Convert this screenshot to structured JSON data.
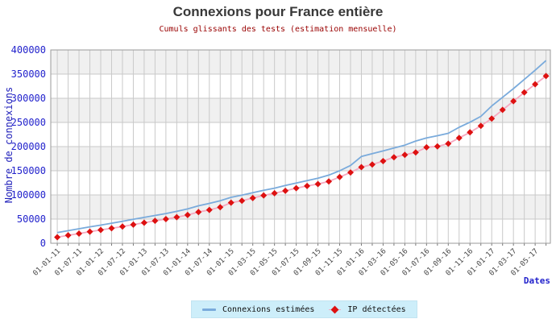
{
  "header": {
    "title": "Connexions pour France entière",
    "subtitle": "Cumuls glissants des tests (estimation mensuelle)"
  },
  "axes": {
    "y_label": "Nombre de connexions",
    "x_label": "Dates",
    "y_tick_labels": [
      "0",
      "50000",
      "100000",
      "150000",
      "200000",
      "250000",
      "300000",
      "350000",
      "400000"
    ]
  },
  "legend": {
    "background": "#cdeefa",
    "items": [
      {
        "label": "Connexions estimées",
        "swatch": "line-swatch",
        "color": "#7aabdc"
      },
      {
        "label": "IP détectées",
        "swatch": "diamond-swatch",
        "color": "#dd1111"
      }
    ]
  },
  "chart_data": {
    "type": "line",
    "title": "Connexions pour France entière",
    "subtitle": "Cumuls glissants des tests (estimation mensuelle)",
    "xlabel": "Dates",
    "ylabel": "Nombre de connexions",
    "ylim": [
      0,
      400000
    ],
    "y_tick_step": 50000,
    "grid": true,
    "legend_position": "bottom",
    "x": [
      "01-01-11",
      "01-04-11",
      "01-07-11",
      "01-10-11",
      "01-01-12",
      "01-04-12",
      "01-07-12",
      "01-10-12",
      "01-01-13",
      "01-04-13",
      "01-07-13",
      "01-10-13",
      "01-01-14",
      "01-04-14",
      "01-07-14",
      "01-10-14",
      "01-01-15",
      "01-02-15",
      "01-03-15",
      "01-04-15",
      "01-05-15",
      "01-06-15",
      "01-07-15",
      "01-08-15",
      "01-09-15",
      "01-10-15",
      "01-11-15",
      "01-12-15",
      "01-01-16",
      "01-02-16",
      "01-03-16",
      "01-04-16",
      "01-05-16",
      "01-06-16",
      "01-07-16",
      "01-08-16",
      "01-09-16",
      "01-10-16",
      "01-11-16",
      "01-12-16",
      "01-01-17",
      "01-02-17",
      "01-03-17",
      "01-04-17",
      "01-05-17",
      "01-06-17"
    ],
    "x_tick_every": 2,
    "x_tick_labels": [
      "01-01-11",
      "01-07-11",
      "01-01-12",
      "01-07-12",
      "01-01-13",
      "01-07-13",
      "01-01-14",
      "01-07-14",
      "01-01-15",
      "01-03-15",
      "01-05-15",
      "01-07-15",
      "01-09-15",
      "01-11-15",
      "01-01-16",
      "01-03-16",
      "01-05-16",
      "01-07-16",
      "01-09-16",
      "01-11-16",
      "01-01-17",
      "01-03-17",
      "01-05-17"
    ],
    "series": [
      {
        "name": "Connexions estimées",
        "color": "#7aabdc",
        "marker": "none",
        "values": [
          22000,
          26000,
          30000,
          34000,
          37500,
          41500,
          45500,
          49500,
          53500,
          57500,
          61500,
          66000,
          71000,
          77500,
          82500,
          88000,
          95000,
          99500,
          104500,
          109500,
          114000,
          119500,
          124500,
          129500,
          134500,
          141000,
          150000,
          161000,
          179500,
          185500,
          191000,
          197000,
          203000,
          211500,
          218000,
          222500,
          227500,
          240000,
          250500,
          262500,
          284000,
          302000,
          320000,
          339000,
          358000,
          378000
        ]
      },
      {
        "name": "IP détectées",
        "color": "#f6a9c0",
        "marker": "diamond",
        "marker_color": "#dd1111",
        "values": [
          12500,
          16500,
          20000,
          24000,
          27500,
          31000,
          34500,
          38500,
          42500,
          46500,
          50000,
          54000,
          58500,
          64500,
          69000,
          74500,
          84000,
          88000,
          93500,
          99000,
          103500,
          108500,
          114000,
          118500,
          122500,
          128000,
          137000,
          146500,
          157500,
          163000,
          170000,
          178000,
          183000,
          188000,
          198500,
          200500,
          206000,
          218000,
          229500,
          243000,
          258000,
          276000,
          294000,
          312000,
          329000,
          346000
        ]
      }
    ],
    "style": {
      "band_dark": "#f0f0f0",
      "band_light": "#ffffff",
      "grid_color": "#c9c9c9",
      "frame_color": "#9a9a9a",
      "y_tick_color": "#2222cc",
      "x_tick_color": "#474747",
      "title_color": "#383838",
      "subtitle_color": "#990000"
    }
  }
}
